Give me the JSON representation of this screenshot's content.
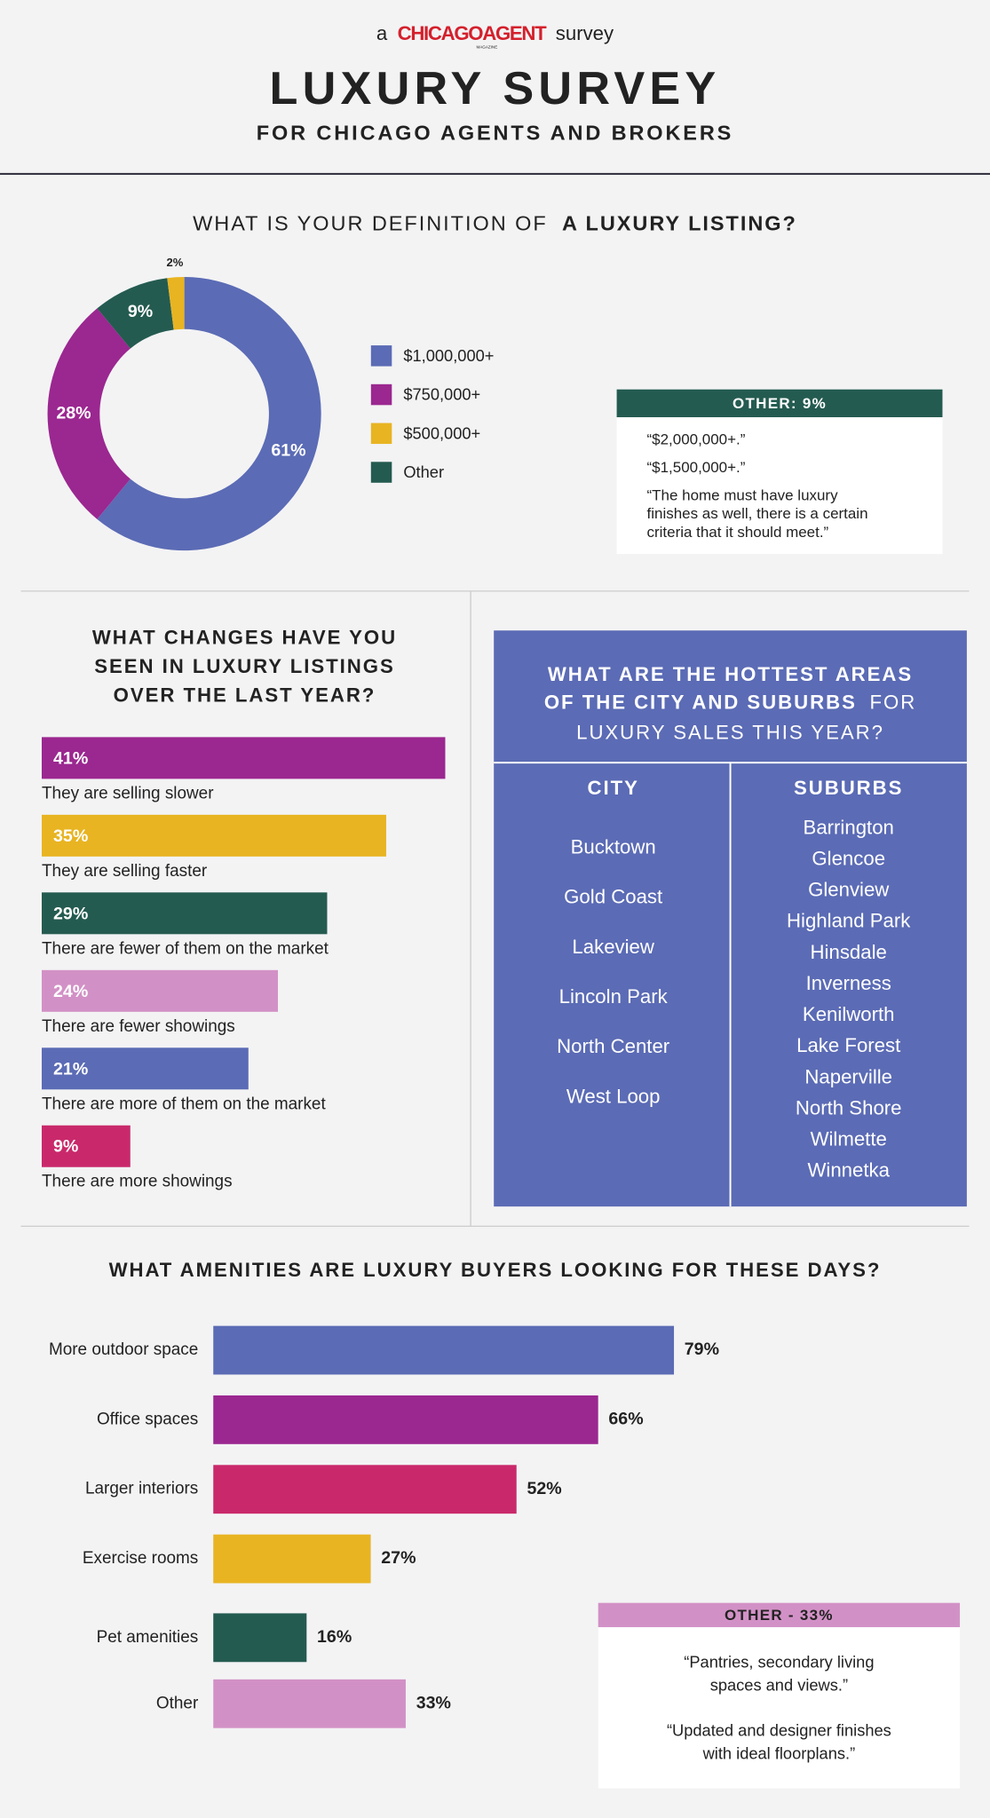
{
  "header": {
    "prefix": "a",
    "brand": "CHICAGOAGENT",
    "brand_tag": "MAGAZINE",
    "suffix": "survey",
    "title": "LUXURY SURVEY",
    "subtitle": "FOR CHICAGO AGENTS AND BROKERS"
  },
  "chart_data": [
    {
      "type": "donut",
      "title": "WHAT IS YOUR DEFINITION OF",
      "title_bold": "A LUXURY LISTING?",
      "categories": [
        "$1,000,000+",
        "$750,000+",
        "$500,000+",
        "Other"
      ],
      "values": [
        61,
        28,
        2,
        9
      ],
      "value_labels": [
        "61%",
        "28%",
        "2%",
        "9%"
      ],
      "colors": [
        "#5b6bb5",
        "#9b2790",
        "#e8b422",
        "#245b50"
      ],
      "note": {
        "title": "OTHER: 9%",
        "quotes": [
          [
            "“$2,000,000+.”"
          ],
          [
            "“$1,500,000+.”"
          ],
          [
            "“The home must have luxury",
            "finishes as well, there is a certain",
            "criteria that it should meet.”"
          ]
        ]
      }
    },
    {
      "type": "bar",
      "orientation": "horizontal",
      "title": [
        "WHAT CHANGES HAVE YOU",
        "SEEN IN LUXURY LISTINGS",
        "OVER THE LAST YEAR?"
      ],
      "categories": [
        "They are selling slower",
        "They are selling faster",
        "There are fewer of them on the market",
        "There are fewer showings",
        "There are more of them on the market",
        "There are more showings"
      ],
      "values": [
        41,
        35,
        29,
        24,
        21,
        9
      ],
      "value_labels": [
        "41%",
        "35%",
        "29%",
        "24%",
        "21%",
        "9%"
      ],
      "colors": [
        "#9b2790",
        "#e8b422",
        "#245b50",
        "#d291c6",
        "#5b6bb5",
        "#c9296b"
      ]
    },
    {
      "type": "bar",
      "orientation": "horizontal",
      "title": "WHAT AMENITIES ARE LUXURY BUYERS LOOKING FOR THESE DAYS?",
      "categories": [
        "More outdoor space",
        "Office spaces",
        "Larger interiors",
        "Exercise rooms",
        "Pet amenities",
        "Other"
      ],
      "values": [
        79,
        66,
        52,
        27,
        16,
        33
      ],
      "value_labels": [
        "79%",
        "66%",
        "52%",
        "27%",
        "16%",
        "33%"
      ],
      "colors": [
        "#5b6bb5",
        "#9b2790",
        "#c9296b",
        "#e8b422",
        "#245b50",
        "#d291c6"
      ],
      "note": {
        "title": "OTHER - 33%",
        "quotes": [
          [
            "“Pantries, secondary living",
            "spaces and views.”"
          ],
          [
            "“Updated and designer finishes",
            "with ideal floorplans.”"
          ]
        ]
      }
    }
  ],
  "areas": {
    "title_bold": [
      "WHAT ARE THE HOTTEST AREAS",
      "OF THE CITY AND SUBURBS"
    ],
    "title_light": [
      "FOR",
      "LUXURY SALES THIS YEAR?"
    ],
    "columns": [
      {
        "header": "CITY",
        "items": [
          "Bucktown",
          "Gold Coast",
          "Lakeview",
          "Lincoln Park",
          "North Center",
          "West Loop"
        ]
      },
      {
        "header": "SUBURBS",
        "items": [
          "Barrington",
          "Glencoe",
          "Glenview",
          "Highland Park",
          "Hinsdale",
          "Inverness",
          "Kenilworth",
          "Lake Forest",
          "Naperville",
          "North Shore",
          "Wilmette",
          "Winnetka"
        ]
      }
    ]
  }
}
